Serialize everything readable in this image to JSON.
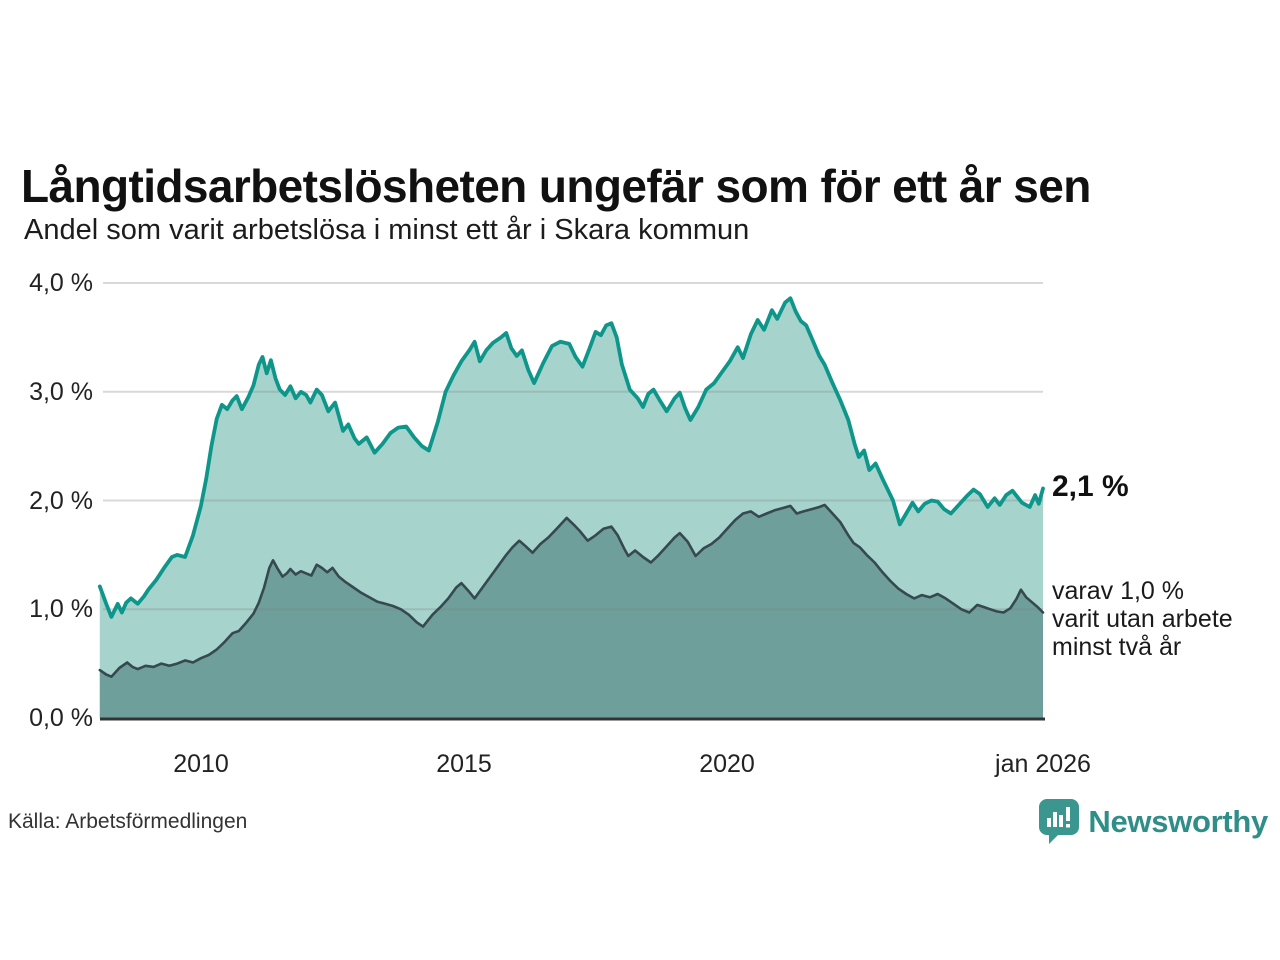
{
  "header": {
    "title": "Långtidsarbetslösheten ungefär som för ett år sen",
    "subtitle": "Andel som varit arbetslösa i minst ett år i Skara kommun"
  },
  "chart_data": {
    "type": "area",
    "title": "Långtidsarbetslösheten ungefär som för ett år sen",
    "subtitle": "Andel som varit arbetslösa i minst ett år i Skara kommun",
    "xlabel": "",
    "ylabel": "",
    "xlim": [
      2008.083,
      2026.0
    ],
    "ylim": [
      0,
      4.0
    ],
    "grid": "horizontal",
    "legend_position": "none",
    "x_ticks": [
      {
        "value": 2010,
        "label": "2010"
      },
      {
        "value": 2015,
        "label": "2015"
      },
      {
        "value": 2020,
        "label": "2020"
      },
      {
        "value": 2026.0,
        "label": "jan 2026"
      }
    ],
    "y_ticks": [
      {
        "value": 0,
        "label": "0,0 %"
      },
      {
        "value": 1,
        "label": "1,0 %"
      },
      {
        "value": 2,
        "label": "2,0 %"
      },
      {
        "value": 3,
        "label": "3,0 %"
      },
      {
        "value": 4,
        "label": "4,0 %"
      }
    ],
    "series": [
      {
        "name": "Arbetslösa minst ett år",
        "line_color": "#0f968b",
        "fill_color": "#a6d4cd",
        "line_width": 3.8,
        "points": [
          [
            2008.08,
            1.21
          ],
          [
            2008.2,
            1.05
          ],
          [
            2008.3,
            0.93
          ],
          [
            2008.42,
            1.05
          ],
          [
            2008.5,
            0.97
          ],
          [
            2008.58,
            1.06
          ],
          [
            2008.67,
            1.1
          ],
          [
            2008.8,
            1.05
          ],
          [
            2008.92,
            1.12
          ],
          [
            2009.0,
            1.18
          ],
          [
            2009.15,
            1.27
          ],
          [
            2009.3,
            1.38
          ],
          [
            2009.45,
            1.48
          ],
          [
            2009.55,
            1.5
          ],
          [
            2009.7,
            1.48
          ],
          [
            2009.85,
            1.68
          ],
          [
            2010.0,
            1.95
          ],
          [
            2010.1,
            2.2
          ],
          [
            2010.2,
            2.5
          ],
          [
            2010.3,
            2.75
          ],
          [
            2010.4,
            2.88
          ],
          [
            2010.5,
            2.84
          ],
          [
            2010.6,
            2.92
          ],
          [
            2010.68,
            2.96
          ],
          [
            2010.78,
            2.84
          ],
          [
            2010.9,
            2.95
          ],
          [
            2011.0,
            3.06
          ],
          [
            2011.1,
            3.25
          ],
          [
            2011.17,
            3.32
          ],
          [
            2011.25,
            3.17
          ],
          [
            2011.33,
            3.29
          ],
          [
            2011.42,
            3.12
          ],
          [
            2011.5,
            3.02
          ],
          [
            2011.6,
            2.97
          ],
          [
            2011.7,
            3.05
          ],
          [
            2011.8,
            2.94
          ],
          [
            2011.9,
            3.0
          ],
          [
            2012.0,
            2.97
          ],
          [
            2012.08,
            2.9
          ],
          [
            2012.2,
            3.02
          ],
          [
            2012.3,
            2.97
          ],
          [
            2012.42,
            2.82
          ],
          [
            2012.55,
            2.9
          ],
          [
            2012.7,
            2.64
          ],
          [
            2012.8,
            2.7
          ],
          [
            2012.92,
            2.57
          ],
          [
            2013.0,
            2.52
          ],
          [
            2013.15,
            2.58
          ],
          [
            2013.3,
            2.44
          ],
          [
            2013.45,
            2.52
          ],
          [
            2013.6,
            2.62
          ],
          [
            2013.75,
            2.67
          ],
          [
            2013.9,
            2.68
          ],
          [
            2014.05,
            2.58
          ],
          [
            2014.2,
            2.5
          ],
          [
            2014.33,
            2.46
          ],
          [
            2014.5,
            2.72
          ],
          [
            2014.65,
            3.0
          ],
          [
            2014.8,
            3.15
          ],
          [
            2014.95,
            3.28
          ],
          [
            2015.1,
            3.38
          ],
          [
            2015.2,
            3.46
          ],
          [
            2015.3,
            3.28
          ],
          [
            2015.42,
            3.38
          ],
          [
            2015.55,
            3.45
          ],
          [
            2015.7,
            3.5
          ],
          [
            2015.8,
            3.54
          ],
          [
            2015.9,
            3.4
          ],
          [
            2016.0,
            3.33
          ],
          [
            2016.1,
            3.38
          ],
          [
            2016.22,
            3.2
          ],
          [
            2016.33,
            3.08
          ],
          [
            2016.5,
            3.26
          ],
          [
            2016.67,
            3.42
          ],
          [
            2016.83,
            3.46
          ],
          [
            2017.0,
            3.44
          ],
          [
            2017.12,
            3.32
          ],
          [
            2017.25,
            3.23
          ],
          [
            2017.4,
            3.42
          ],
          [
            2017.5,
            3.55
          ],
          [
            2017.6,
            3.52
          ],
          [
            2017.7,
            3.61
          ],
          [
            2017.8,
            3.63
          ],
          [
            2017.9,
            3.5
          ],
          [
            2018.0,
            3.25
          ],
          [
            2018.15,
            3.02
          ],
          [
            2018.3,
            2.94
          ],
          [
            2018.4,
            2.86
          ],
          [
            2018.5,
            2.98
          ],
          [
            2018.6,
            3.02
          ],
          [
            2018.72,
            2.92
          ],
          [
            2018.85,
            2.82
          ],
          [
            2019.0,
            2.94
          ],
          [
            2019.1,
            2.99
          ],
          [
            2019.2,
            2.85
          ],
          [
            2019.3,
            2.74
          ],
          [
            2019.45,
            2.86
          ],
          [
            2019.6,
            3.02
          ],
          [
            2019.75,
            3.08
          ],
          [
            2019.9,
            3.18
          ],
          [
            2020.05,
            3.28
          ],
          [
            2020.2,
            3.41
          ],
          [
            2020.3,
            3.31
          ],
          [
            2020.45,
            3.53
          ],
          [
            2020.58,
            3.66
          ],
          [
            2020.7,
            3.57
          ],
          [
            2020.85,
            3.75
          ],
          [
            2020.95,
            3.67
          ],
          [
            2021.1,
            3.82
          ],
          [
            2021.2,
            3.86
          ],
          [
            2021.3,
            3.74
          ],
          [
            2021.4,
            3.65
          ],
          [
            2021.5,
            3.61
          ],
          [
            2021.6,
            3.5
          ],
          [
            2021.75,
            3.33
          ],
          [
            2021.85,
            3.25
          ],
          [
            2022.0,
            3.08
          ],
          [
            2022.15,
            2.92
          ],
          [
            2022.3,
            2.74
          ],
          [
            2022.42,
            2.52
          ],
          [
            2022.5,
            2.4
          ],
          [
            2022.6,
            2.46
          ],
          [
            2022.7,
            2.28
          ],
          [
            2022.82,
            2.34
          ],
          [
            2022.95,
            2.2
          ],
          [
            2023.05,
            2.1
          ],
          [
            2023.15,
            2.0
          ],
          [
            2023.28,
            1.78
          ],
          [
            2023.4,
            1.88
          ],
          [
            2023.52,
            1.98
          ],
          [
            2023.63,
            1.9
          ],
          [
            2023.75,
            1.97
          ],
          [
            2023.88,
            2.0
          ],
          [
            2024.0,
            1.99
          ],
          [
            2024.12,
            1.92
          ],
          [
            2024.25,
            1.88
          ],
          [
            2024.4,
            1.96
          ],
          [
            2024.55,
            2.04
          ],
          [
            2024.68,
            2.1
          ],
          [
            2024.8,
            2.06
          ],
          [
            2024.95,
            1.94
          ],
          [
            2025.08,
            2.02
          ],
          [
            2025.18,
            1.96
          ],
          [
            2025.3,
            2.05
          ],
          [
            2025.42,
            2.09
          ],
          [
            2025.5,
            2.04
          ],
          [
            2025.6,
            1.98
          ],
          [
            2025.75,
            1.94
          ],
          [
            2025.85,
            2.05
          ],
          [
            2025.92,
            1.97
          ],
          [
            2026.0,
            2.11
          ]
        ]
      },
      {
        "name": "varav utan arbete minst två år",
        "line_color": "#35494f",
        "fill_color": "#6e9f9b",
        "line_width": 2.6,
        "points": [
          [
            2008.08,
            0.44
          ],
          [
            2008.2,
            0.4
          ],
          [
            2008.3,
            0.38
          ],
          [
            2008.45,
            0.46
          ],
          [
            2008.6,
            0.51
          ],
          [
            2008.7,
            0.47
          ],
          [
            2008.8,
            0.45
          ],
          [
            2008.95,
            0.48
          ],
          [
            2009.1,
            0.47
          ],
          [
            2009.25,
            0.5
          ],
          [
            2009.4,
            0.48
          ],
          [
            2009.55,
            0.5
          ],
          [
            2009.7,
            0.53
          ],
          [
            2009.85,
            0.51
          ],
          [
            2010.0,
            0.55
          ],
          [
            2010.15,
            0.58
          ],
          [
            2010.3,
            0.63
          ],
          [
            2010.45,
            0.7
          ],
          [
            2010.6,
            0.78
          ],
          [
            2010.72,
            0.8
          ],
          [
            2010.85,
            0.87
          ],
          [
            2011.0,
            0.96
          ],
          [
            2011.1,
            1.06
          ],
          [
            2011.2,
            1.2
          ],
          [
            2011.3,
            1.38
          ],
          [
            2011.37,
            1.45
          ],
          [
            2011.45,
            1.38
          ],
          [
            2011.55,
            1.3
          ],
          [
            2011.63,
            1.33
          ],
          [
            2011.7,
            1.37
          ],
          [
            2011.8,
            1.32
          ],
          [
            2011.9,
            1.35
          ],
          [
            2012.0,
            1.33
          ],
          [
            2012.1,
            1.31
          ],
          [
            2012.2,
            1.41
          ],
          [
            2012.3,
            1.38
          ],
          [
            2012.4,
            1.34
          ],
          [
            2012.5,
            1.38
          ],
          [
            2012.62,
            1.3
          ],
          [
            2012.75,
            1.25
          ],
          [
            2012.9,
            1.2
          ],
          [
            2013.05,
            1.15
          ],
          [
            2013.2,
            1.11
          ],
          [
            2013.35,
            1.07
          ],
          [
            2013.5,
            1.05
          ],
          [
            2013.65,
            1.03
          ],
          [
            2013.8,
            1.0
          ],
          [
            2013.95,
            0.95
          ],
          [
            2014.1,
            0.88
          ],
          [
            2014.22,
            0.84
          ],
          [
            2014.4,
            0.95
          ],
          [
            2014.55,
            1.02
          ],
          [
            2014.7,
            1.1
          ],
          [
            2014.85,
            1.2
          ],
          [
            2014.95,
            1.24
          ],
          [
            2015.1,
            1.16
          ],
          [
            2015.2,
            1.1
          ],
          [
            2015.35,
            1.2
          ],
          [
            2015.5,
            1.3
          ],
          [
            2015.65,
            1.4
          ],
          [
            2015.8,
            1.5
          ],
          [
            2015.92,
            1.57
          ],
          [
            2016.05,
            1.63
          ],
          [
            2016.17,
            1.58
          ],
          [
            2016.3,
            1.52
          ],
          [
            2016.45,
            1.6
          ],
          [
            2016.6,
            1.66
          ],
          [
            2016.78,
            1.75
          ],
          [
            2016.95,
            1.84
          ],
          [
            2017.08,
            1.78
          ],
          [
            2017.2,
            1.72
          ],
          [
            2017.35,
            1.63
          ],
          [
            2017.5,
            1.68
          ],
          [
            2017.65,
            1.74
          ],
          [
            2017.8,
            1.76
          ],
          [
            2017.92,
            1.68
          ],
          [
            2018.05,
            1.55
          ],
          [
            2018.12,
            1.49
          ],
          [
            2018.25,
            1.54
          ],
          [
            2018.4,
            1.48
          ],
          [
            2018.55,
            1.43
          ],
          [
            2018.7,
            1.5
          ],
          [
            2018.85,
            1.58
          ],
          [
            2019.0,
            1.66
          ],
          [
            2019.1,
            1.7
          ],
          [
            2019.25,
            1.62
          ],
          [
            2019.4,
            1.49
          ],
          [
            2019.55,
            1.56
          ],
          [
            2019.7,
            1.6
          ],
          [
            2019.85,
            1.66
          ],
          [
            2020.0,
            1.74
          ],
          [
            2020.15,
            1.82
          ],
          [
            2020.3,
            1.88
          ],
          [
            2020.45,
            1.9
          ],
          [
            2020.6,
            1.85
          ],
          [
            2020.75,
            1.88
          ],
          [
            2020.9,
            1.91
          ],
          [
            2021.05,
            1.93
          ],
          [
            2021.2,
            1.95
          ],
          [
            2021.32,
            1.88
          ],
          [
            2021.45,
            1.9
          ],
          [
            2021.6,
            1.92
          ],
          [
            2021.75,
            1.94
          ],
          [
            2021.85,
            1.96
          ],
          [
            2022.0,
            1.88
          ],
          [
            2022.15,
            1.8
          ],
          [
            2022.3,
            1.68
          ],
          [
            2022.4,
            1.61
          ],
          [
            2022.52,
            1.57
          ],
          [
            2022.65,
            1.5
          ],
          [
            2022.8,
            1.43
          ],
          [
            2022.95,
            1.34
          ],
          [
            2023.1,
            1.26
          ],
          [
            2023.25,
            1.19
          ],
          [
            2023.4,
            1.14
          ],
          [
            2023.55,
            1.1
          ],
          [
            2023.7,
            1.13
          ],
          [
            2023.85,
            1.11
          ],
          [
            2024.0,
            1.14
          ],
          [
            2024.15,
            1.1
          ],
          [
            2024.3,
            1.05
          ],
          [
            2024.45,
            1.0
          ],
          [
            2024.6,
            0.97
          ],
          [
            2024.75,
            1.04
          ],
          [
            2024.88,
            1.02
          ],
          [
            2025.0,
            1.0
          ],
          [
            2025.12,
            0.98
          ],
          [
            2025.25,
            0.97
          ],
          [
            2025.38,
            1.01
          ],
          [
            2025.5,
            1.1
          ],
          [
            2025.58,
            1.18
          ],
          [
            2025.68,
            1.11
          ],
          [
            2025.8,
            1.06
          ],
          [
            2025.9,
            1.02
          ],
          [
            2026.0,
            0.97
          ]
        ]
      }
    ],
    "annotations": {
      "latest": {
        "text": "2,1 %"
      },
      "subseries": {
        "lines": [
          "varav 1,0 %",
          "varit utan arbete",
          "minst två år"
        ]
      }
    }
  },
  "footer": {
    "source": "Källa: Arbetsförmedlingen",
    "brand": "Newsworthy"
  },
  "colors": {
    "accent_teal": "#0f968b",
    "light_fill": "#a6d4cd",
    "dark_fill": "#6e9f9b",
    "dark_line": "#35494f",
    "grid": "#dcdcdc",
    "axis": "#333333",
    "brand_teal": "#2f8e88"
  }
}
